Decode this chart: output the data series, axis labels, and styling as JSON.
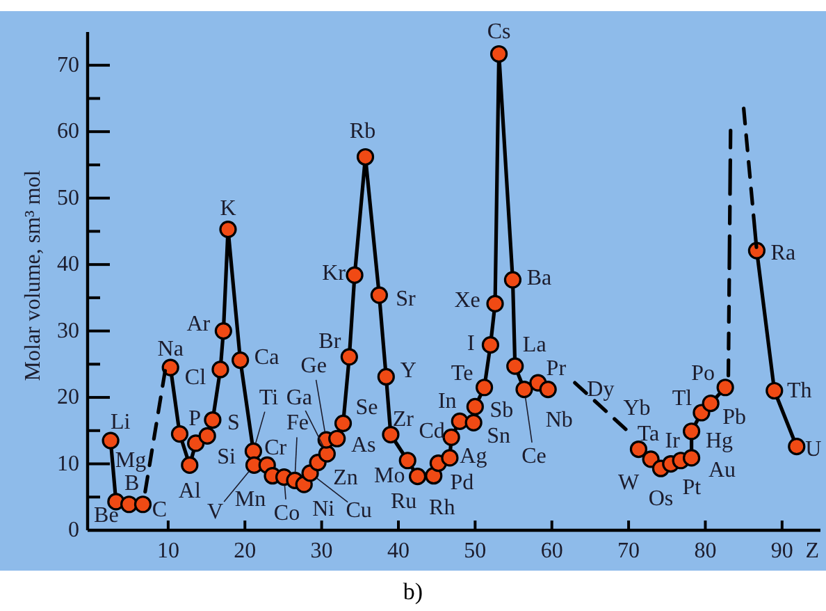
{
  "chart_data": {
    "type": "line",
    "xlabel": "Z",
    "ylabel": "Molar volume, sm³ mol",
    "xlim": [
      -0.5,
      95
    ],
    "ylim": [
      0,
      75
    ],
    "xticks": [
      10,
      20,
      30,
      40,
      50,
      60,
      70,
      80,
      90
    ],
    "yticks": [
      0,
      {
        "value": 5,
        "label": null
      },
      10,
      {
        "value": 15,
        "label": null
      },
      20,
      {
        "value": 25,
        "label": null
      },
      30,
      {
        "value": 35,
        "label": null
      },
      40,
      {
        "value": 45,
        "label": null
      },
      50,
      {
        "value": 55,
        "label": null
      },
      60,
      {
        "value": 65,
        "label": null
      },
      70
    ],
    "series": [
      {
        "color": "#f04a14",
        "marker": "circle",
        "line_style": "solid",
        "x": [
          2.5,
          3.2,
          4.9,
          6.7,
          null,
          10.3,
          11.5,
          12.8,
          13.6,
          15.1,
          15.8,
          16.8,
          17.2,
          17.8,
          19.4,
          21.1,
          21.2,
          22.9,
          23.6,
          25.1,
          26.5,
          27.7,
          28.5,
          29.5,
          30.7,
          30.6,
          32.0,
          32.8,
          33.6,
          34.3,
          35.7,
          37.5,
          38.4,
          39.0,
          41.2,
          42.5,
          44.6,
          45.2,
          46.7,
          46.9,
          48.0,
          49.8,
          50.0,
          51.2,
          52.0,
          52.6,
          53.1,
          54.9,
          55.2,
          56.4,
          58.2,
          59.5,
          null,
          71.3,
          72.9,
          74.2,
          75.5,
          76.8,
          78.2,
          78.2,
          79.5,
          80.7,
          82.6,
          null,
          86.7,
          89.0,
          91.9
        ],
        "values": [
          13.5,
          4.3,
          3.9,
          3.9,
          null,
          24.5,
          14.5,
          9.8,
          13.1,
          14.2,
          16.6,
          24.2,
          30.0,
          45.3,
          25.6,
          11.9,
          9.8,
          9.8,
          8.2,
          8.0,
          7.5,
          6.9,
          8.6,
          10.2,
          11.5,
          13.6,
          13.8,
          16.1,
          26.1,
          38.4,
          56.2,
          35.4,
          23.1,
          14.4,
          10.5,
          8.1,
          8.2,
          10.1,
          10.9,
          14.0,
          16.4,
          16.2,
          18.6,
          21.5,
          27.9,
          34.1,
          71.7,
          37.7,
          24.7,
          21.2,
          22.2,
          21.2,
          null,
          12.2,
          10.7,
          9.3,
          10.0,
          10.5,
          10.9,
          14.9,
          17.7,
          19.1,
          21.5,
          null,
          42.1,
          21.0,
          12.6
        ]
      },
      {
        "type": "line",
        "color": "#000000",
        "marker": "none",
        "line_style": "dashed",
        "x": [
          7.0,
          9.6,
          null,
          63.0,
          70.3,
          null,
          83.0,
          83.3,
          null,
          85.0,
          86.7
        ],
        "values": [
          5.8,
          24.0,
          null,
          22.2,
          14.5,
          null,
          23.3,
          61.4,
          null,
          63.5,
          42.1
        ]
      }
    ],
    "annotations": [
      {
        "text": "Li",
        "x": 2.5,
        "y": 13.5
      },
      {
        "text": "Be",
        "x": 3.2,
        "y": 4.3
      },
      {
        "text": "B",
        "x": 4.9,
        "y": 3.9
      },
      {
        "text": "C",
        "x": 6.7,
        "y": 3.9
      },
      {
        "text": "Mg",
        "x": 8.2,
        "y": 14
      },
      {
        "text": "Na",
        "x": 10.3,
        "y": 24.5
      },
      {
        "text": "Al",
        "x": 12.8,
        "y": 9.8
      },
      {
        "text": "Si",
        "x": 13.6,
        "y": 13.1
      },
      {
        "text": "P",
        "x": 15.1,
        "y": 14.2
      },
      {
        "text": "S",
        "x": 15.8,
        "y": 16.6
      },
      {
        "text": "Cl",
        "x": 16.8,
        "y": 24.2
      },
      {
        "text": "Ar",
        "x": 17.2,
        "y": 30.0
      },
      {
        "text": "K",
        "x": 17.8,
        "y": 45.3
      },
      {
        "text": "Ca",
        "x": 19.4,
        "y": 25.6
      },
      {
        "text": "Ti",
        "x": 21.1,
        "y": 11.9
      },
      {
        "text": "V",
        "x": 21.2,
        "y": 9.8
      },
      {
        "text": "Cr",
        "x": 22.9,
        "y": 9.8
      },
      {
        "text": "Mn",
        "x": 23.6,
        "y": 8.2
      },
      {
        "text": "Co",
        "x": 25.1,
        "y": 8.0
      },
      {
        "text": "Fe",
        "x": 26.5,
        "y": 7.5
      },
      {
        "text": "Ni",
        "x": 27.7,
        "y": 6.9
      },
      {
        "text": "Cu",
        "x": 28.5,
        "y": 8.6
      },
      {
        "text": "Zn",
        "x": 29.5,
        "y": 10.2
      },
      {
        "text": "Ga",
        "x": 30.7,
        "y": 11.5
      },
      {
        "text": "Ge",
        "x": 30.6,
        "y": 13.6
      },
      {
        "text": "As",
        "x": 32.0,
        "y": 13.8
      },
      {
        "text": "Se",
        "x": 32.8,
        "y": 16.1
      },
      {
        "text": "Br",
        "x": 33.6,
        "y": 26.1
      },
      {
        "text": "Kr",
        "x": 34.3,
        "y": 38.4
      },
      {
        "text": "Rb",
        "x": 35.7,
        "y": 56.2
      },
      {
        "text": "Sr",
        "x": 37.5,
        "y": 35.4
      },
      {
        "text": "Y",
        "x": 38.4,
        "y": 23.1
      },
      {
        "text": "Zr",
        "x": 39.0,
        "y": 14.4
      },
      {
        "text": "Mo",
        "x": 41.2,
        "y": 10.5
      },
      {
        "text": "Ru",
        "x": 42.5,
        "y": 8.1
      },
      {
        "text": "Rh",
        "x": 44.6,
        "y": 8.2
      },
      {
        "text": "Pd",
        "x": 45.2,
        "y": 10.1
      },
      {
        "text": "Ag",
        "x": 46.7,
        "y": 10.9
      },
      {
        "text": "Cd",
        "x": 46.9,
        "y": 14.0
      },
      {
        "text": "In",
        "x": 48.0,
        "y": 16.4
      },
      {
        "text": "Sn",
        "x": 49.8,
        "y": 16.2
      },
      {
        "text": "Sb",
        "x": 50.0,
        "y": 18.6
      },
      {
        "text": "Te",
        "x": 51.2,
        "y": 21.5
      },
      {
        "text": "I",
        "x": 52.0,
        "y": 27.9
      },
      {
        "text": "Xe",
        "x": 52.6,
        "y": 34.1
      },
      {
        "text": "Cs",
        "x": 53.1,
        "y": 71.7
      },
      {
        "text": "Ba",
        "x": 54.9,
        "y": 37.7
      },
      {
        "text": "La",
        "x": 55.2,
        "y": 24.7
      },
      {
        "text": "Ce",
        "x": 56.4,
        "y": 21.2
      },
      {
        "text": "Pr",
        "x": 58.2,
        "y": 22.2
      },
      {
        "text": "Nb",
        "x": 59.5,
        "y": 21.2
      },
      {
        "text": "Dy",
        "x": 64,
        "y": 21.15
      },
      {
        "text": "Yb",
        "x": 68,
        "y": 16.9
      },
      {
        "text": "Ta",
        "x": 71.3,
        "y": 12.2
      },
      {
        "text": "W",
        "x": 72.9,
        "y": 10.7
      },
      {
        "text": "Os",
        "x": 74.2,
        "y": 9.3
      },
      {
        "text": "Pt",
        "x": 75.5,
        "y": 10.0
      },
      {
        "text": "Ir",
        "x": 76.8,
        "y": 10.5
      },
      {
        "text": "Au",
        "x": 78.2,
        "y": 10.9
      },
      {
        "text": "Hg",
        "x": 78.2,
        "y": 14.9
      },
      {
        "text": "Tl",
        "x": 79.5,
        "y": 17.7
      },
      {
        "text": "Pb",
        "x": 80.7,
        "y": 19.1
      },
      {
        "text": "Po",
        "x": 82.6,
        "y": 21.5
      },
      {
        "text": "Ra",
        "x": 86.7,
        "y": 42.1
      },
      {
        "text": "Th",
        "x": 89.0,
        "y": 21.0
      },
      {
        "text": "U",
        "x": 91.9,
        "y": 12.6
      },
      "b)"
    ]
  }
}
